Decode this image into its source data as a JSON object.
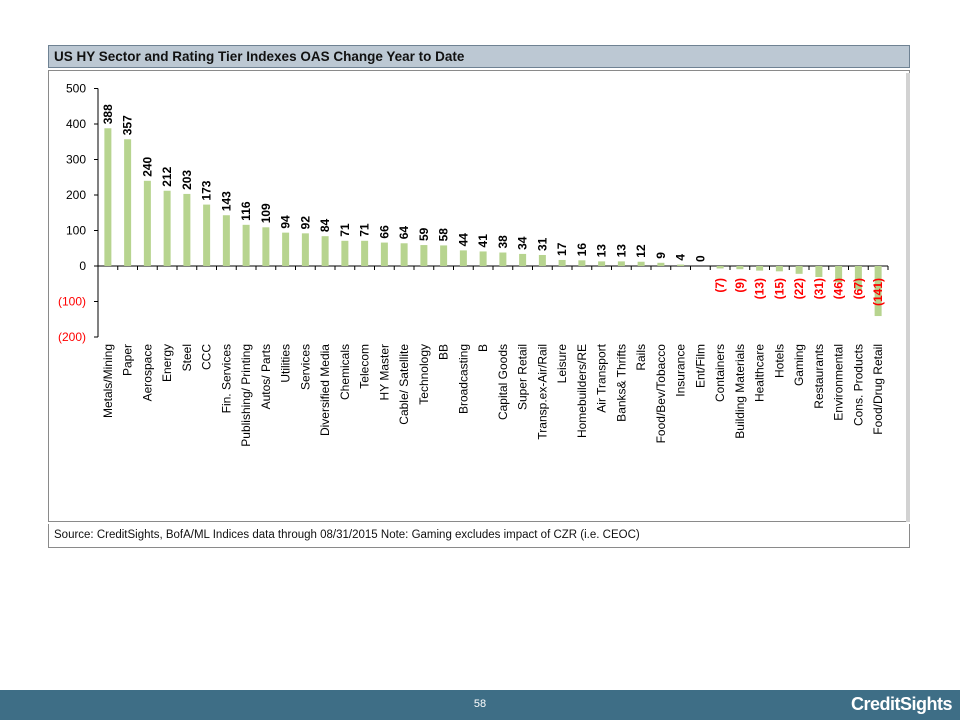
{
  "header": {
    "title": "US HY Sector and Rating Tier Indexes OAS Change Year to Date"
  },
  "footer_note": "Source: CreditSights, BofA/ML Indices   data through 08/31/2015    Note: Gaming excludes impact of CZR (i.e. CEOC)",
  "page_number": "58",
  "brand": "CreditSights",
  "colors": {
    "bar": "#b7d48f",
    "negative_label": "#ff0000",
    "positive_label": "#000000",
    "title_bg": "#bcc8d3",
    "footer_bg": "#3e6e86"
  },
  "chart_data": {
    "type": "bar",
    "title": "US HY Sector and Rating Tier Indexes OAS Change Year to Date",
    "xlabel": "",
    "ylabel": "",
    "ylim": [
      -200,
      500
    ],
    "yticks": [
      500,
      400,
      300,
      200,
      100,
      0,
      -100,
      -200
    ],
    "ytick_labels": [
      "500",
      "400",
      "300",
      "200",
      "100",
      "0",
      "(100)",
      "(200)"
    ],
    "grid": false,
    "legend": "none",
    "categories": [
      "Metals/Mining",
      "Paper",
      "Aerospace",
      "Energy",
      "Steel",
      "CCC",
      "Fin. Services",
      "Publishing/ Printing",
      "Autos/ Parts",
      "Utilities",
      "Services",
      "Diversified Media",
      "Chemicals",
      "Telecom",
      "HY Master",
      "Cable/ Satellite",
      "Technology",
      "BB",
      "Broadcasting",
      "B",
      "Capital Goods",
      "Super Retail",
      "Transp.ex-Air/Rail",
      "Leisure",
      "Homebuilders/RE",
      "Air Transport",
      "Banks& Thrifts",
      "Rails",
      "Food/Bev/Tobacco",
      "Insurance",
      "Ent/Film",
      "Containers",
      "Building Materials",
      "Healthcare",
      "Hotels",
      "Gaming",
      "Restaurants",
      "Environmental",
      "Cons. Products",
      "Food/Drug Retail"
    ],
    "values": [
      388,
      357,
      240,
      212,
      203,
      173,
      143,
      116,
      109,
      94,
      92,
      84,
      71,
      71,
      66,
      64,
      59,
      58,
      44,
      41,
      38,
      34,
      31,
      17,
      16,
      13,
      13,
      12,
      9,
      4,
      0,
      -7,
      -9,
      -13,
      -15,
      -22,
      -31,
      -46,
      -67,
      -141
    ],
    "data_labels": [
      "388",
      "357",
      "240",
      "212",
      "203",
      "173",
      "143",
      "116",
      "109",
      "94",
      "92",
      "84",
      "71",
      "71",
      "66",
      "64",
      "59",
      "58",
      "44",
      "41",
      "38",
      "34",
      "31",
      "17",
      "16",
      "13",
      "13",
      "12",
      "9",
      "4",
      "0",
      "(7)",
      "(9)",
      "(13)",
      "(15)",
      "(22)",
      "(31)",
      "(46)",
      "(67)",
      "(141)"
    ]
  }
}
